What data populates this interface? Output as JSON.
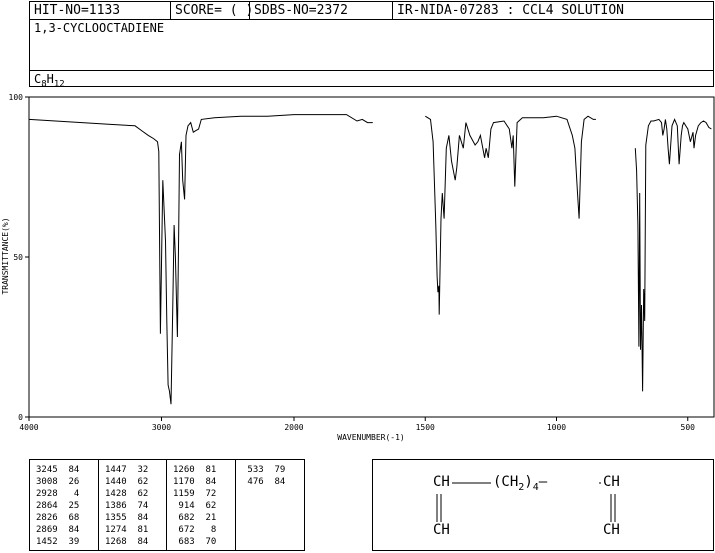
{
  "header": {
    "hit_no": "HIT-NO=1133",
    "score": "SCORE=  (   )",
    "sdbs_no": "SDBS-NO=2372",
    "ir_info": "IR-NIDA-07283 : CCL4 SOLUTION",
    "compound_name": "1,3-CYCLOOCTADIENE",
    "formula_main": "C",
    "formula_sub1": "8",
    "formula_mid": "H",
    "formula_sub2": "12"
  },
  "chart_data": {
    "type": "line",
    "xlabel": "WAVENUMBER(-1)",
    "ylabel": "TRANSMITTANCE(%)",
    "xlim": [
      4000,
      400
    ],
    "ylim": [
      0,
      100
    ],
    "x_ticks": [
      4000,
      3000,
      2000,
      1500,
      1000,
      500
    ],
    "y_ticks": [
      0,
      50,
      100
    ],
    "segments": [
      {
        "x": [
          4000,
          3800,
          3600,
          3400,
          3200,
          3150,
          3100,
          3060,
          3030,
          3020,
          3008,
          2990,
          2970,
          2960,
          2950,
          2940,
          2928,
          2915,
          2905,
          2895,
          2880,
          2870,
          2864,
          2850,
          2840,
          2826,
          2815,
          2800,
          2780,
          2760,
          2740,
          2720,
          2700,
          2600,
          2400,
          2200,
          2000,
          1900,
          1800,
          1760,
          1740,
          1720,
          1700
        ],
        "y": [
          93,
          92.5,
          92,
          91.5,
          91,
          89.5,
          88,
          87,
          86,
          83,
          26,
          74,
          55,
          30,
          10,
          8,
          4,
          35,
          60,
          50,
          25,
          58,
          82,
          86,
          74,
          68,
          88,
          91,
          92,
          89,
          89.5,
          90,
          93,
          93.5,
          94,
          94,
          94.5,
          94.5,
          94.5,
          92.5,
          93,
          92,
          92
        ]
      },
      {
        "x": [
          1500,
          1480,
          1470,
          1460,
          1455,
          1452,
          1448,
          1447,
          1440,
          1435,
          1428,
          1420,
          1410,
          1400,
          1386,
          1380,
          1370,
          1355,
          1345,
          1330,
          1310,
          1300,
          1290,
          1274,
          1268,
          1260,
          1250,
          1240,
          1200,
          1180,
          1170,
          1165,
          1159,
          1150,
          1130,
          1100,
          1050,
          1000,
          960,
          940,
          930,
          920,
          914,
          905,
          895,
          880,
          860,
          850
        ],
        "y": [
          94,
          93,
          86,
          60,
          44,
          39,
          41,
          32,
          62,
          70,
          62,
          84,
          88,
          80,
          74,
          78,
          88,
          84,
          92,
          88,
          85,
          86,
          88,
          81,
          84,
          81,
          90,
          92,
          92.5,
          90,
          84,
          88,
          72,
          92,
          93.5,
          93.5,
          93.5,
          94,
          93,
          88,
          84,
          70,
          62,
          86,
          93,
          94,
          93,
          93
        ]
      },
      {
        "x": [
          700,
          695,
          690,
          686,
          683,
          680,
          676,
          672,
          668,
          664,
          660,
          650,
          640,
          630,
          610,
          600,
          595,
          590,
          585,
          580,
          575,
          570,
          560,
          550,
          540,
          533,
          525,
          520,
          515,
          500,
          490,
          480,
          476,
          470,
          460,
          450,
          440,
          430,
          420,
          410
        ],
        "y": [
          84,
          77,
          60,
          22,
          70,
          21,
          35,
          8,
          40,
          30,
          85,
          91,
          92.5,
          92.5,
          93,
          92,
          88,
          90,
          93,
          90,
          84,
          79,
          91,
          93,
          91,
          79,
          88,
          91,
          92,
          90,
          86,
          89,
          84,
          88,
          91,
          92,
          92.5,
          92,
          90.5,
          90
        ]
      }
    ],
    "peak_table": [
      [
        [
          "3245",
          "84"
        ],
        [
          "3008",
          "26"
        ],
        [
          "2928",
          "4"
        ],
        [
          "2864",
          "25"
        ],
        [
          "2826",
          "68"
        ],
        [
          "2869",
          "84"
        ],
        [
          "1452",
          "39"
        ]
      ],
      [
        [
          "1447",
          "32"
        ],
        [
          "1440",
          "62"
        ],
        [
          "1428",
          "62"
        ],
        [
          "1386",
          "74"
        ],
        [
          "1355",
          "84"
        ],
        [
          "1274",
          "81"
        ],
        [
          "1268",
          "84"
        ]
      ],
      [
        [
          "1260",
          "81"
        ],
        [
          "1170",
          "84"
        ],
        [
          "1159",
          "72"
        ],
        [
          "914",
          "62"
        ],
        [
          "682",
          "21"
        ],
        [
          "672",
          "8"
        ],
        [
          "683",
          "70"
        ]
      ],
      [
        [
          "533",
          "79"
        ],
        [
          "476",
          "84"
        ]
      ]
    ]
  },
  "structure": {
    "row1_left": "CH",
    "row1_mid_a": "(CH",
    "row1_mid_sub": "2",
    "row1_mid_b": ")",
    "row1_mid_sub2": "4",
    "row1_right": "CH",
    "row2_left": "CH",
    "row2_right": "CH"
  }
}
